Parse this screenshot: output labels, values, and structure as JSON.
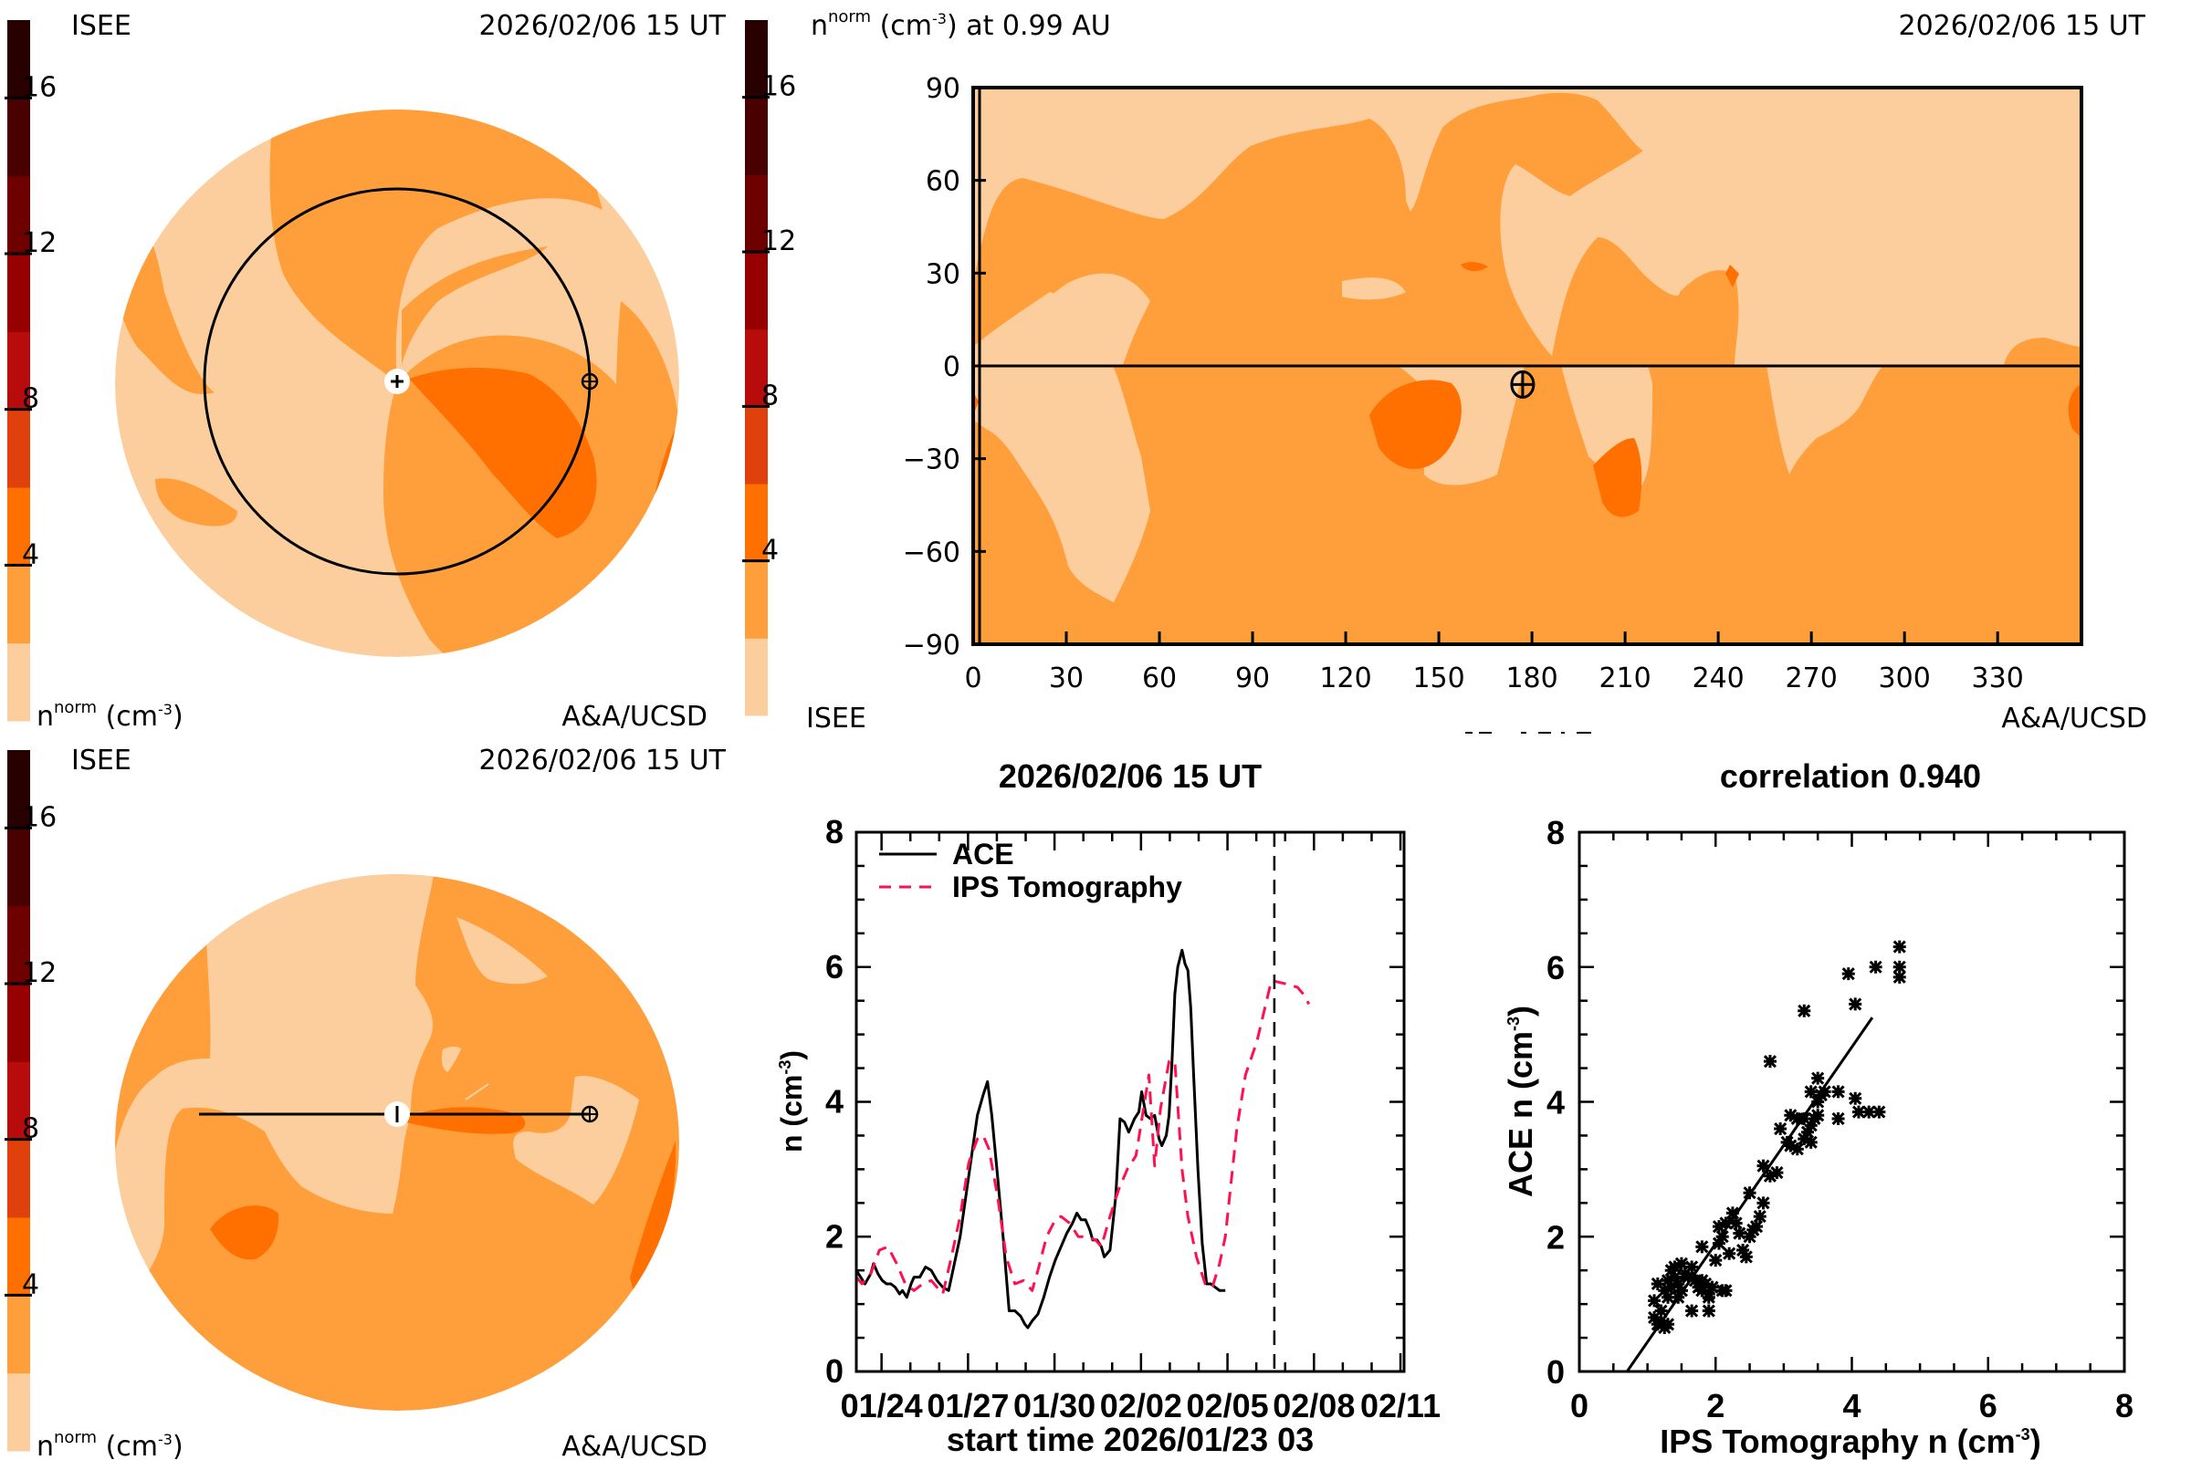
{
  "colorbar": {
    "ticks": [
      4,
      8,
      12,
      16
    ],
    "range": [
      0,
      18
    ],
    "band_colors": [
      "#FDCE9D",
      "#FF9F3C",
      "#FF7000",
      "#E0410C",
      "#B80C0C",
      "#960000",
      "#6E0000",
      "#480000",
      "#280000"
    ]
  },
  "panel_top_left": {
    "org_label": "ISEE",
    "timestamp": "2026/02/06 15 UT",
    "unit_label_base": "n",
    "unit_label_sup": "norm",
    "unit_label_rest": " (cm",
    "unit_label_exp": "-3",
    "unit_label_close": ")",
    "credit": "A&A/UCSD",
    "view": "ecliptic (top-down)",
    "earth_orbit_radius_au": 0.99
  },
  "panel_top_right": {
    "title_base": "n",
    "title_sup": "norm",
    "title_rest": " (cm",
    "title_exp": "-3",
    "title_tail": ") at 0.99 AU",
    "timestamp": "2026/02/06 15 UT",
    "org_label": "ISEE",
    "credit": "A&A/UCSD",
    "y_ticks": [
      90,
      60,
      30,
      0,
      -30,
      -60,
      -90
    ],
    "x_ticks": [
      0,
      30,
      60,
      90,
      120,
      150,
      180,
      210,
      240,
      270,
      300,
      330
    ],
    "earth_marker": {
      "lon": 177,
      "lat": -6
    }
  },
  "panel_bottom_left": {
    "org_label": "ISEE",
    "timestamp": "2026/02/06 15 UT",
    "unit_label_base": "n",
    "unit_label_sup": "norm",
    "unit_label_rest": " (cm",
    "unit_label_exp": "-3",
    "unit_label_close": ")",
    "credit": "A&A/UCSD",
    "view": "meridional (side view)"
  },
  "chart_data": [
    {
      "type": "line",
      "title": "2026/02/06 15 UT",
      "xlabel": "start time 2026/01/23 03",
      "ylabel_base": "n (cm",
      "ylabel_exp": "-3",
      "ylabel_close": ")",
      "ylim": [
        0,
        8
      ],
      "y_ticks": [
        0,
        2,
        4,
        6,
        8
      ],
      "x_range_days": [
        0,
        19
      ],
      "x_tick_labels": [
        "01/24",
        "01/27",
        "01/30",
        "02/02",
        "02/05",
        "02/08",
        "02/11"
      ],
      "x_tick_days": [
        0.875,
        3.875,
        6.875,
        9.875,
        12.875,
        15.875,
        18.875
      ],
      "current_time_day": 14.5,
      "legend": [
        "ACE",
        "IPS Tomography"
      ],
      "legend_position": "top-left",
      "series": [
        {
          "name": "ACE",
          "color": "#000000",
          "style": "solid",
          "points": [
            [
              0,
              1.5
            ],
            [
              0.15,
              1.4
            ],
            [
              0.3,
              1.3
            ],
            [
              0.5,
              1.45
            ],
            [
              0.6,
              1.6
            ],
            [
              0.75,
              1.45
            ],
            [
              0.9,
              1.35
            ],
            [
              1.05,
              1.3
            ],
            [
              1.2,
              1.3
            ],
            [
              1.35,
              1.25
            ],
            [
              1.5,
              1.15
            ],
            [
              1.6,
              1.2
            ],
            [
              1.75,
              1.1
            ],
            [
              1.9,
              1.3
            ],
            [
              2.0,
              1.4
            ],
            [
              2.2,
              1.4
            ],
            [
              2.4,
              1.55
            ],
            [
              2.6,
              1.5
            ],
            [
              2.8,
              1.35
            ],
            [
              3.0,
              1.25
            ],
            [
              3.2,
              1.2
            ],
            [
              3.4,
              1.6
            ],
            [
              3.6,
              2.0
            ],
            [
              3.8,
              2.6
            ],
            [
              4.0,
              3.2
            ],
            [
              4.2,
              3.8
            ],
            [
              4.4,
              4.1
            ],
            [
              4.55,
              4.3
            ],
            [
              4.7,
              3.8
            ],
            [
              4.9,
              2.9
            ],
            [
              5.1,
              1.95
            ],
            [
              5.3,
              0.9
            ],
            [
              5.5,
              0.9
            ],
            [
              5.7,
              0.82
            ],
            [
              5.85,
              0.7
            ],
            [
              5.95,
              0.65
            ],
            [
              6.1,
              0.75
            ],
            [
              6.3,
              0.85
            ],
            [
              6.5,
              1.1
            ],
            [
              6.7,
              1.4
            ],
            [
              6.9,
              1.65
            ],
            [
              7.1,
              1.85
            ],
            [
              7.3,
              2.05
            ],
            [
              7.5,
              2.2
            ],
            [
              7.65,
              2.35
            ],
            [
              7.8,
              2.25
            ],
            [
              7.95,
              2.25
            ],
            [
              8.1,
              2.1
            ],
            [
              8.2,
              1.95
            ],
            [
              8.35,
              1.95
            ],
            [
              8.5,
              1.85
            ],
            [
              8.6,
              1.7
            ],
            [
              8.8,
              1.8
            ],
            [
              9.0,
              2.6
            ],
            [
              9.15,
              3.75
            ],
            [
              9.3,
              3.7
            ],
            [
              9.45,
              3.55
            ],
            [
              9.65,
              3.75
            ],
            [
              9.8,
              3.85
            ],
            [
              9.9,
              4.15
            ],
            [
              10.05,
              3.8
            ],
            [
              10.2,
              3.75
            ],
            [
              10.35,
              3.8
            ],
            [
              10.5,
              3.45
            ],
            [
              10.6,
              3.35
            ],
            [
              10.75,
              3.5
            ],
            [
              10.85,
              3.8
            ],
            [
              10.95,
              4.6
            ],
            [
              11.05,
              5.6
            ],
            [
              11.15,
              6.0
            ],
            [
              11.3,
              6.25
            ],
            [
              11.4,
              6.05
            ],
            [
              11.5,
              5.95
            ],
            [
              11.6,
              5.4
            ],
            [
              11.7,
              4.4
            ],
            [
              11.85,
              3.0
            ],
            [
              12.0,
              1.9
            ],
            [
              12.15,
              1.3
            ],
            [
              12.3,
              1.3
            ],
            [
              12.45,
              1.25
            ],
            [
              12.6,
              1.2
            ],
            [
              12.8,
              1.2
            ]
          ]
        },
        {
          "name": "IPS Tomography",
          "color": "#FF1050",
          "style": "dashed",
          "points": [
            [
              0,
              1.4
            ],
            [
              0.2,
              1.3
            ],
            [
              0.5,
              1.45
            ],
            [
              0.8,
              1.8
            ],
            [
              1.1,
              1.85
            ],
            [
              1.4,
              1.6
            ],
            [
              1.7,
              1.3
            ],
            [
              2.0,
              1.2
            ],
            [
              2.3,
              1.3
            ],
            [
              2.6,
              1.35
            ],
            [
              3.0,
              1.15
            ],
            [
              3.3,
              1.7
            ],
            [
              3.6,
              2.3
            ],
            [
              3.9,
              3.1
            ],
            [
              4.2,
              3.45
            ],
            [
              4.4,
              3.5
            ],
            [
              4.6,
              3.3
            ],
            [
              4.9,
              2.6
            ],
            [
              5.2,
              1.7
            ],
            [
              5.5,
              1.3
            ],
            [
              5.8,
              1.35
            ],
            [
              6.1,
              1.2
            ],
            [
              6.3,
              1.5
            ],
            [
              6.6,
              2.0
            ],
            [
              6.9,
              2.25
            ],
            [
              7.1,
              2.3
            ],
            [
              7.4,
              2.2
            ],
            [
              7.7,
              2.0
            ],
            [
              8.0,
              2.0
            ],
            [
              8.3,
              1.95
            ],
            [
              8.5,
              1.85
            ],
            [
              8.8,
              2.3
            ],
            [
              9.1,
              2.7
            ],
            [
              9.4,
              3.0
            ],
            [
              9.7,
              3.2
            ],
            [
              10.0,
              4.0
            ],
            [
              10.15,
              4.4
            ],
            [
              10.35,
              3.05
            ],
            [
              10.55,
              3.9
            ],
            [
              10.85,
              4.6
            ],
            [
              11.05,
              4.6
            ],
            [
              11.3,
              3.0
            ],
            [
              11.5,
              2.3
            ],
            [
              11.8,
              1.7
            ],
            [
              12.1,
              1.3
            ],
            [
              12.35,
              1.25
            ],
            [
              12.6,
              1.6
            ],
            [
              12.8,
              2.0
            ],
            [
              13.2,
              3.6
            ],
            [
              13.5,
              4.4
            ],
            [
              13.9,
              4.9
            ],
            [
              14.4,
              5.8
            ],
            [
              14.9,
              5.75
            ],
            [
              15.3,
              5.7
            ],
            [
              15.5,
              5.6
            ],
            [
              15.7,
              5.45
            ]
          ]
        }
      ]
    },
    {
      "type": "scatter",
      "title": "correlation 0.940",
      "xlabel_base": "IPS Tomography n (cm",
      "xlabel_exp": "-3",
      "xlabel_close": ")",
      "ylabel_base": "ACE n (cm",
      "ylabel_exp": "-3",
      "ylabel_close": ")",
      "xlim": [
        0,
        8
      ],
      "ylim": [
        0,
        8
      ],
      "x_ticks": [
        0,
        2,
        4,
        6,
        8
      ],
      "y_ticks": [
        0,
        2,
        4,
        6,
        8
      ],
      "correlation": 0.94,
      "fit_line": [
        [
          0.7,
          0.0
        ],
        [
          4.3,
          5.25
        ]
      ],
      "points": [
        [
          1.1,
          0.8
        ],
        [
          1.15,
          0.7
        ],
        [
          1.2,
          0.75
        ],
        [
          1.25,
          0.65
        ],
        [
          1.3,
          0.7
        ],
        [
          1.2,
          0.9
        ],
        [
          1.1,
          1.05
        ],
        [
          1.15,
          1.3
        ],
        [
          1.25,
          1.2
        ],
        [
          1.3,
          1.35
        ],
        [
          1.35,
          1.5
        ],
        [
          1.4,
          1.4
        ],
        [
          1.45,
          1.3
        ],
        [
          1.5,
          1.2
        ],
        [
          1.4,
          1.55
        ],
        [
          1.5,
          1.6
        ],
        [
          1.55,
          1.45
        ],
        [
          1.6,
          1.4
        ],
        [
          1.3,
          1.1
        ],
        [
          1.35,
          1.25
        ],
        [
          1.45,
          1.1
        ],
        [
          1.65,
          1.55
        ],
        [
          1.7,
          1.35
        ],
        [
          1.75,
          1.25
        ],
        [
          1.8,
          1.2
        ],
        [
          1.85,
          1.3
        ],
        [
          1.9,
          1.15
        ],
        [
          1.95,
          1.25
        ],
        [
          1.8,
          1.35
        ],
        [
          1.9,
          1.1
        ],
        [
          1.65,
          0.9
        ],
        [
          1.9,
          0.9
        ],
        [
          1.8,
          1.85
        ],
        [
          2.0,
          1.65
        ],
        [
          2.05,
          1.9
        ],
        [
          2.1,
          2.0
        ],
        [
          2.05,
          2.15
        ],
        [
          2.15,
          2.2
        ],
        [
          2.2,
          1.75
        ],
        [
          2.15,
          1.2
        ],
        [
          2.1,
          1.2
        ],
        [
          2.25,
          2.35
        ],
        [
          2.3,
          2.2
        ],
        [
          2.35,
          2.05
        ],
        [
          2.4,
          1.8
        ],
        [
          2.45,
          1.7
        ],
        [
          2.5,
          2.0
        ],
        [
          2.55,
          2.1
        ],
        [
          2.6,
          2.15
        ],
        [
          2.65,
          2.3
        ],
        [
          2.5,
          2.65
        ],
        [
          2.7,
          2.5
        ],
        [
          2.8,
          2.9
        ],
        [
          2.9,
          2.95
        ],
        [
          2.7,
          3.05
        ],
        [
          2.95,
          3.6
        ],
        [
          3.05,
          3.4
        ],
        [
          3.1,
          3.35
        ],
        [
          3.2,
          3.3
        ],
        [
          3.3,
          3.45
        ],
        [
          3.35,
          3.55
        ],
        [
          3.4,
          3.65
        ],
        [
          3.45,
          3.75
        ],
        [
          3.5,
          3.8
        ],
        [
          3.3,
          3.75
        ],
        [
          3.2,
          3.75
        ],
        [
          3.1,
          3.8
        ],
        [
          3.4,
          3.4
        ],
        [
          3.5,
          4.0
        ],
        [
          3.55,
          4.1
        ],
        [
          3.6,
          4.15
        ],
        [
          3.5,
          4.35
        ],
        [
          3.4,
          4.15
        ],
        [
          3.8,
          4.15
        ],
        [
          3.8,
          3.75
        ],
        [
          4.05,
          4.05
        ],
        [
          4.1,
          3.85
        ],
        [
          4.25,
          3.85
        ],
        [
          4.4,
          3.85
        ],
        [
          2.8,
          4.6
        ],
        [
          3.3,
          5.35
        ],
        [
          4.05,
          5.45
        ],
        [
          3.95,
          5.9
        ],
        [
          4.35,
          6.0
        ],
        [
          4.7,
          5.85
        ],
        [
          4.7,
          6.0
        ],
        [
          4.7,
          6.3
        ]
      ]
    }
  ]
}
